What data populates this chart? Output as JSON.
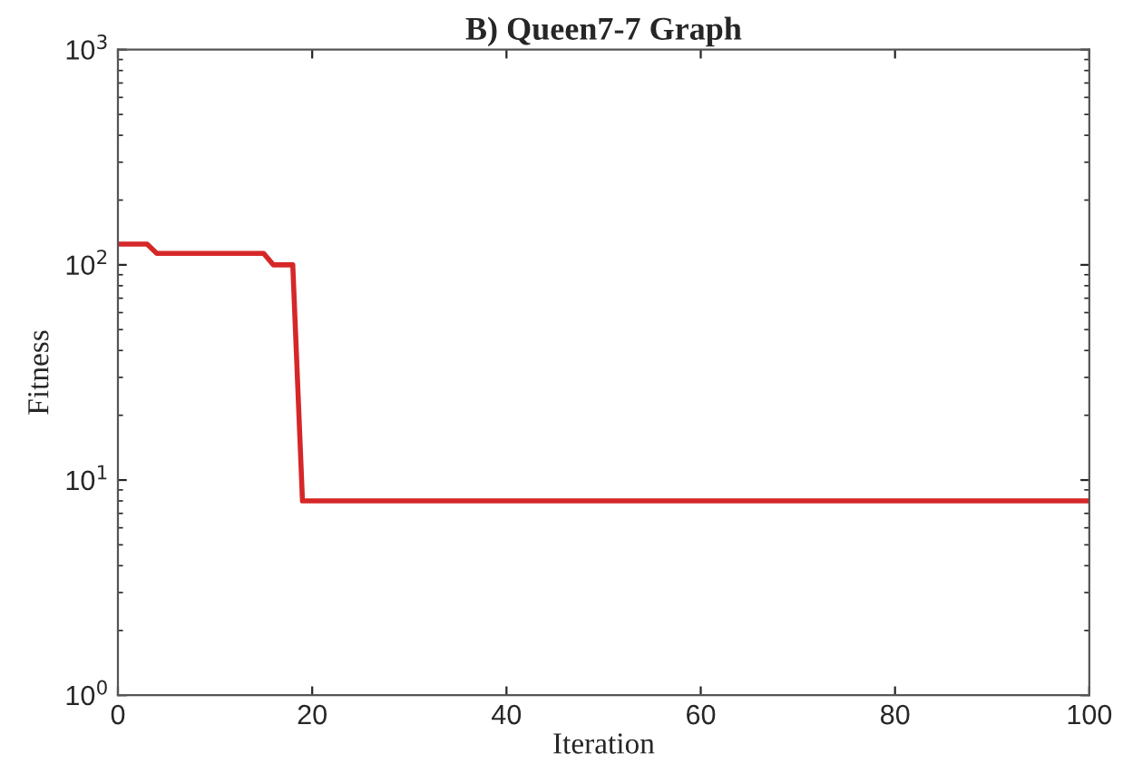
{
  "chart_data": {
    "type": "line",
    "title": "B) Queen7-7 Graph",
    "xlabel": "Iteration",
    "ylabel": "Fitness",
    "log": "y",
    "xlim": [
      0,
      100
    ],
    "xticks": [
      0,
      20,
      40,
      60,
      80,
      100
    ],
    "ylim": [
      1,
      1000
    ],
    "yticks": [
      {
        "value": 1,
        "label": "10$^{0}$"
      },
      {
        "value": 10,
        "label": "10$^{1}$"
      },
      {
        "value": 100,
        "label": "10$^{2}$"
      },
      {
        "value": 1000,
        "label": "10$^{3}$"
      }
    ],
    "grid": false,
    "marker": "none",
    "line_style": "solid",
    "series": [
      {
        "color": "#d62728",
        "x": [
          0,
          1,
          2,
          3,
          4,
          5,
          10,
          15,
          16,
          17,
          18,
          19,
          20,
          40,
          60,
          80,
          100
        ],
        "values": [
          125,
          125,
          125,
          125,
          113,
          113,
          113,
          113,
          100,
          100,
          100,
          8,
          8,
          8,
          8,
          8,
          8
        ]
      }
    ]
  }
}
